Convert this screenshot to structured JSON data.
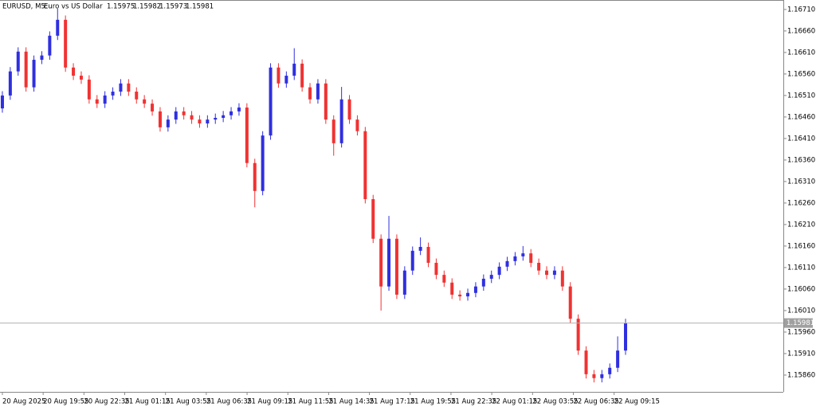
{
  "chart_data": {
    "type": "candlestick",
    "symbol": "EURUSD, M5:",
    "description": "Euro vs US Dollar",
    "quote": [
      1.15975,
      1.15982,
      1.15973,
      1.15981
    ],
    "last_price": 1.15981,
    "up_color": "#2f2fe0",
    "down_color": "#f03232",
    "grid": false,
    "xlim": [
      -0.3,
      99
    ],
    "ylim": [
      1.15821,
      1.16732
    ],
    "yticks": [
      {
        "value": 1.1586,
        "label": "1.15860"
      },
      {
        "value": 1.1591,
        "label": "1.15910"
      },
      {
        "value": 1.1596,
        "label": "1.15960"
      },
      {
        "value": 1.1601,
        "label": "1.16010"
      },
      {
        "value": 1.1606,
        "label": "1.16060"
      },
      {
        "value": 1.1611,
        "label": "1.16110"
      },
      {
        "value": 1.1616,
        "label": "1.16160"
      },
      {
        "value": 1.1621,
        "label": "1.16210"
      },
      {
        "value": 1.1626,
        "label": "1.16260"
      },
      {
        "value": 1.1631,
        "label": "1.16310"
      },
      {
        "value": 1.1636,
        "label": "1.16360"
      },
      {
        "value": 1.1641,
        "label": "1.16410"
      },
      {
        "value": 1.1646,
        "label": "1.16460"
      },
      {
        "value": 1.1651,
        "label": "1.16510"
      },
      {
        "value": 1.1656,
        "label": "1.16560"
      },
      {
        "value": 1.1661,
        "label": "1.16610"
      },
      {
        "value": 1.1666,
        "label": "1.16660"
      },
      {
        "value": 1.1671,
        "label": "1.16710"
      }
    ],
    "xticks": [
      {
        "value": 0,
        "label": "20 Aug 2025"
      },
      {
        "value": 5.17,
        "label": "20 Aug 19:55"
      },
      {
        "value": 10.34,
        "label": "20 Aug 22:35"
      },
      {
        "value": 15.51,
        "label": "21 Aug 01:15"
      },
      {
        "value": 20.68,
        "label": "21 Aug 03:55"
      },
      {
        "value": 25.85,
        "label": "21 Aug 06:35"
      },
      {
        "value": 31.02,
        "label": "21 Aug 09:15"
      },
      {
        "value": 36.19,
        "label": "21 Aug 11:55"
      },
      {
        "value": 41.36,
        "label": "21 Aug 14:35"
      },
      {
        "value": 46.53,
        "label": "21 Aug 17:15"
      },
      {
        "value": 51.7,
        "label": "21 Aug 19:55"
      },
      {
        "value": 56.87,
        "label": "21 Aug 22:35"
      },
      {
        "value": 62.04,
        "label": "22 Aug 01:15"
      },
      {
        "value": 67.21,
        "label": "22 Aug 03:55"
      },
      {
        "value": 72.38,
        "label": "22 Aug 06:35"
      },
      {
        "value": 77.55,
        "label": "22 Aug 09:15"
      }
    ],
    "open": [
      1.1648,
      1.1651,
      1.16566,
      1.16612,
      1.16529,
      1.16593,
      1.16603,
      1.16649,
      1.16686,
      1.16575,
      1.16556,
      1.16547,
      1.16501,
      1.16491,
      1.1651,
      1.16519,
      1.16538,
      1.16519,
      1.16501,
      1.16491,
      1.16473,
      1.16436,
      1.16454,
      1.16473,
      1.16464,
      1.16454,
      1.16445,
      1.16454,
      1.16458,
      1.16464,
      1.16473,
      1.16482,
      1.16353,
      1.16288,
      1.16417,
      1.16575,
      1.16538,
      1.16556,
      1.16584,
      1.16529,
      1.16501,
      1.16538,
      1.16454,
      1.16399,
      1.16501,
      1.16454,
      1.16427,
      1.16269,
      1.16177,
      1.16066,
      1.16177,
      1.16047,
      1.16103,
      1.16149,
      1.16158,
      1.16121,
      1.16093,
      1.16075,
      1.16047,
      1.16043,
      1.16051,
      1.16066,
      1.16084,
      1.16093,
      1.16112,
      1.16125,
      1.16136,
      1.16143,
      1.16121,
      1.16103,
      1.16093,
      1.16103,
      1.16066,
      1.15991,
      1.15917,
      1.15862,
      1.15853,
      1.15862,
      1.15877,
      1.15917
    ],
    "high": [
      1.1652,
      1.16576,
      1.16622,
      1.16622,
      1.16603,
      1.16613,
      1.16659,
      1.16712,
      1.16696,
      1.16585,
      1.16566,
      1.16557,
      1.16511,
      1.1652,
      1.16529,
      1.16548,
      1.16548,
      1.16529,
      1.16511,
      1.16501,
      1.16483,
      1.16464,
      1.16483,
      1.16483,
      1.16474,
      1.16464,
      1.16464,
      1.16468,
      1.16474,
      1.16483,
      1.16492,
      1.16492,
      1.16363,
      1.16427,
      1.16585,
      1.16585,
      1.16566,
      1.1662,
      1.16594,
      1.16539,
      1.16548,
      1.16548,
      1.16464,
      1.1653,
      1.16511,
      1.16464,
      1.16437,
      1.16279,
      1.16187,
      1.1623,
      1.16187,
      1.16113,
      1.16159,
      1.1618,
      1.16168,
      1.16131,
      1.16103,
      1.16085,
      1.16057,
      1.16061,
      1.16076,
      1.16094,
      1.16103,
      1.16122,
      1.16135,
      1.16146,
      1.1616,
      1.16153,
      1.16131,
      1.16113,
      1.16113,
      1.16113,
      1.16076,
      1.16001,
      1.15927,
      1.15872,
      1.15872,
      1.15887,
      1.1595,
      1.15991
    ],
    "low": [
      1.1647,
      1.165,
      1.16556,
      1.16519,
      1.16519,
      1.16583,
      1.16593,
      1.16639,
      1.16565,
      1.16546,
      1.16537,
      1.16491,
      1.16481,
      1.16481,
      1.165,
      1.16509,
      1.16509,
      1.16491,
      1.16481,
      1.16463,
      1.16426,
      1.16426,
      1.16444,
      1.16454,
      1.16444,
      1.16435,
      1.16435,
      1.16444,
      1.16448,
      1.16454,
      1.16463,
      1.16343,
      1.1625,
      1.16278,
      1.16407,
      1.16528,
      1.16528,
      1.16546,
      1.16519,
      1.16491,
      1.16491,
      1.16444,
      1.1637,
      1.16389,
      1.16444,
      1.16417,
      1.16259,
      1.16167,
      1.1601,
      1.16056,
      1.16037,
      1.16037,
      1.16093,
      1.16139,
      1.16111,
      1.16083,
      1.16065,
      1.16037,
      1.16033,
      1.16033,
      1.16041,
      1.16056,
      1.16074,
      1.16083,
      1.16102,
      1.16115,
      1.16126,
      1.16111,
      1.16093,
      1.16083,
      1.16083,
      1.16056,
      1.15981,
      1.15907,
      1.15852,
      1.15843,
      1.15843,
      1.15852,
      1.15867,
      1.15907
    ],
    "close": [
      1.1651,
      1.16566,
      1.16612,
      1.16529,
      1.16593,
      1.16603,
      1.16649,
      1.16686,
      1.16575,
      1.16556,
      1.16547,
      1.16501,
      1.16491,
      1.1651,
      1.16519,
      1.16538,
      1.16519,
      1.16501,
      1.16491,
      1.16473,
      1.16436,
      1.16454,
      1.16473,
      1.16464,
      1.16454,
      1.16445,
      1.16454,
      1.16458,
      1.16464,
      1.16473,
      1.16482,
      1.16353,
      1.16288,
      1.16417,
      1.16575,
      1.16538,
      1.16556,
      1.16584,
      1.16529,
      1.16501,
      1.16538,
      1.16454,
      1.16399,
      1.16501,
      1.16454,
      1.16427,
      1.16269,
      1.16177,
      1.16066,
      1.16177,
      1.16047,
      1.16103,
      1.16149,
      1.16158,
      1.16121,
      1.16093,
      1.16075,
      1.16047,
      1.16043,
      1.16051,
      1.16066,
      1.16084,
      1.16093,
      1.16112,
      1.16125,
      1.16136,
      1.16143,
      1.16121,
      1.16103,
      1.16093,
      1.16103,
      1.16066,
      1.15991,
      1.15917,
      1.15862,
      1.15853,
      1.15862,
      1.15877,
      1.15917,
      1.15981
    ]
  }
}
